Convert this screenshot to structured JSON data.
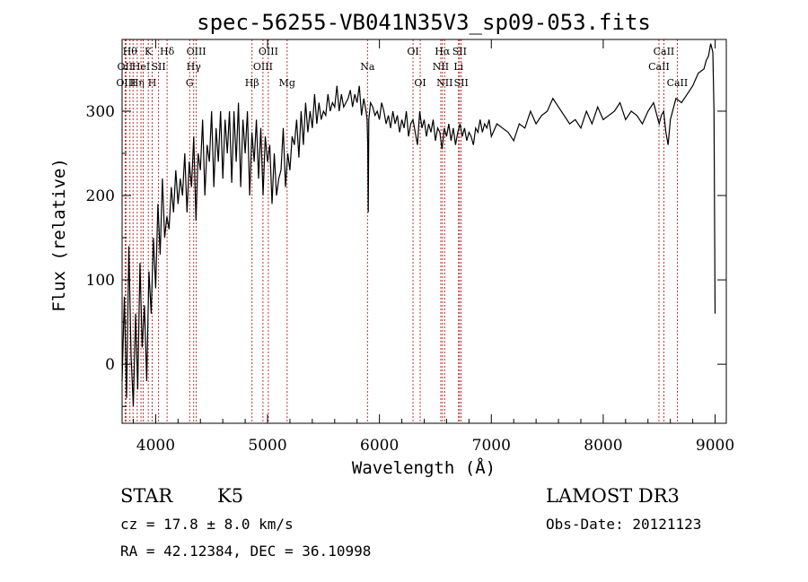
{
  "chart_data": {
    "type": "line",
    "title": "spec-56255-VB041N35V3_sp09-053.fits",
    "xlabel": "Wavelength (Å)",
    "ylabel": "Flux (relative)",
    "xlim": [
      3700,
      9100
    ],
    "ylim": [
      -70,
      385
    ],
    "x_ticks": [
      4000,
      5000,
      6000,
      7000,
      8000,
      9000
    ],
    "x_tick_labels": [
      "4000",
      "5000",
      "6000",
      "7000",
      "8000",
      "9000"
    ],
    "y_ticks": [
      0,
      100,
      200,
      300
    ],
    "y_tick_labels": [
      "0",
      "100",
      "200",
      "300"
    ],
    "grid": false,
    "series": [
      {
        "name": "flux",
        "x": [
          3700,
          3720,
          3740,
          3760,
          3780,
          3800,
          3820,
          3840,
          3860,
          3880,
          3900,
          3920,
          3940,
          3960,
          3980,
          4000,
          4020,
          4040,
          4060,
          4080,
          4100,
          4120,
          4140,
          4160,
          4180,
          4200,
          4220,
          4240,
          4260,
          4280,
          4300,
          4320,
          4340,
          4360,
          4380,
          4400,
          4420,
          4440,
          4460,
          4480,
          4500,
          4520,
          4540,
          4560,
          4580,
          4600,
          4620,
          4640,
          4660,
          4680,
          4700,
          4720,
          4740,
          4760,
          4780,
          4800,
          4820,
          4840,
          4860,
          4880,
          4900,
          4920,
          4940,
          4960,
          4980,
          5000,
          5020,
          5040,
          5060,
          5080,
          5100,
          5120,
          5140,
          5160,
          5180,
          5200,
          5220,
          5240,
          5260,
          5280,
          5300,
          5320,
          5340,
          5360,
          5380,
          5400,
          5420,
          5440,
          5460,
          5480,
          5500,
          5520,
          5540,
          5560,
          5580,
          5600,
          5620,
          5640,
          5660,
          5680,
          5700,
          5720,
          5740,
          5760,
          5780,
          5800,
          5820,
          5840,
          5860,
          5880,
          5890,
          5895,
          5900,
          5905,
          5920,
          5940,
          5960,
          5980,
          6000,
          6020,
          6040,
          6060,
          6080,
          6100,
          6120,
          6140,
          6160,
          6180,
          6200,
          6220,
          6240,
          6260,
          6280,
          6300,
          6320,
          6340,
          6360,
          6380,
          6400,
          6420,
          6440,
          6460,
          6480,
          6500,
          6520,
          6540,
          6560,
          6580,
          6600,
          6620,
          6640,
          6660,
          6680,
          6700,
          6720,
          6740,
          6760,
          6780,
          6800,
          6820,
          6840,
          6860,
          6880,
          6900,
          6920,
          6940,
          6960,
          6980,
          7000,
          7050,
          7100,
          7150,
          7200,
          7250,
          7300,
          7350,
          7400,
          7450,
          7500,
          7550,
          7600,
          7650,
          7700,
          7750,
          7800,
          7850,
          7900,
          7950,
          8000,
          8050,
          8100,
          8150,
          8200,
          8250,
          8300,
          8350,
          8400,
          8450,
          8500,
          8520,
          8540,
          8560,
          8580,
          8600,
          8650,
          8700,
          8750,
          8800,
          8850,
          8900,
          8920,
          8940,
          8960,
          8980,
          8990,
          9000
        ],
        "y": [
          -20,
          80,
          -40,
          140,
          10,
          -50,
          60,
          -30,
          120,
          20,
          70,
          -20,
          110,
          60,
          150,
          90,
          190,
          130,
          220,
          150,
          175,
          160,
          210,
          180,
          230,
          190,
          220,
          200,
          250,
          180,
          240,
          210,
          270,
          170,
          250,
          230,
          290,
          200,
          260,
          240,
          300,
          210,
          280,
          240,
          300,
          220,
          290,
          250,
          300,
          215,
          300,
          240,
          310,
          210,
          290,
          250,
          300,
          200,
          275,
          240,
          290,
          220,
          280,
          200,
          270,
          240,
          260,
          190,
          250,
          200,
          220,
          230,
          280,
          210,
          250,
          230,
          270,
          260,
          290,
          245,
          300,
          260,
          310,
          275,
          300,
          280,
          320,
          285,
          310,
          290,
          300,
          295,
          320,
          300,
          310,
          305,
          330,
          300,
          320,
          305,
          310,
          315,
          325,
          305,
          320,
          310,
          330,
          295,
          315,
          300,
          290,
          260,
          180,
          290,
          310,
          305,
          295,
          300,
          290,
          310,
          300,
          285,
          295,
          280,
          300,
          285,
          295,
          275,
          290,
          280,
          300,
          270,
          285,
          290,
          275,
          260,
          300,
          280,
          290,
          270,
          285,
          275,
          290,
          265,
          280,
          275,
          255,
          280,
          270,
          285,
          265,
          280,
          260,
          275,
          285,
          270,
          280,
          265,
          275,
          270,
          260,
          280,
          275,
          290,
          275,
          285,
          280,
          290,
          270,
          285,
          280,
          275,
          265,
          285,
          280,
          300,
          285,
          295,
          300,
          315,
          305,
          295,
          285,
          290,
          280,
          300,
          285,
          305,
          290,
          295,
          300,
          310,
          290,
          300,
          295,
          285,
          300,
          310,
          285,
          295,
          300,
          275,
          260,
          290,
          315,
          310,
          320,
          330,
          345,
          350,
          360,
          365,
          380,
          370,
          300,
          60
        ]
      }
    ],
    "lines": [
      {
        "x": 3727,
        "label": "OII",
        "row": 2
      },
      {
        "x": 3735,
        "label": "OIII",
        "row": 3
      },
      {
        "x": 3770,
        "label": "Hθ",
        "row": 1
      },
      {
        "x": 3798,
        "label": "",
        "row": 0
      },
      {
        "x": 3835,
        "label": "Hη",
        "row": 3
      },
      {
        "x": 3869,
        "label": "HeI",
        "row": 2
      },
      {
        "x": 3889,
        "label": "",
        "row": 0
      },
      {
        "x": 3934,
        "label": "K",
        "row": 1
      },
      {
        "x": 3969,
        "label": "H",
        "row": 3
      },
      {
        "x": 4026,
        "label": "SII",
        "row": 2
      },
      {
        "x": 4102,
        "label": "Hδ",
        "row": 1
      },
      {
        "x": 4304,
        "label": "G",
        "row": 3
      },
      {
        "x": 4340,
        "label": "Hγ",
        "row": 2
      },
      {
        "x": 4363,
        "label": "OIII",
        "row": 1
      },
      {
        "x": 4861,
        "label": "Hβ",
        "row": 3
      },
      {
        "x": 4959,
        "label": "OIII",
        "row": 2
      },
      {
        "x": 5007,
        "label": "OIII",
        "row": 1
      },
      {
        "x": 5175,
        "label": "Mg",
        "row": 3
      },
      {
        "x": 5893,
        "label": "Na",
        "row": 2
      },
      {
        "x": 6300,
        "label": "OI",
        "row": 1
      },
      {
        "x": 6364,
        "label": "OI",
        "row": 3
      },
      {
        "x": 6548,
        "label": "NII",
        "row": 2
      },
      {
        "x": 6563,
        "label": "Hα",
        "row": 1
      },
      {
        "x": 6583,
        "label": "NII",
        "row": 3
      },
      {
        "x": 6707,
        "label": "Li",
        "row": 2
      },
      {
        "x": 6716,
        "label": "SII",
        "row": 1
      },
      {
        "x": 6731,
        "label": "SII",
        "row": 3
      },
      {
        "x": 8498,
        "label": "CaII",
        "row": 2
      },
      {
        "x": 8542,
        "label": "CaII",
        "row": 1
      },
      {
        "x": 8662,
        "label": "CaII",
        "row": 3
      }
    ]
  },
  "info": {
    "object_class": "STAR",
    "subclass": "K5",
    "survey": "LAMOST DR3",
    "cz": "cz = 17.8 ± 8.0 km/s",
    "obs_date": "Obs-Date: 20121123",
    "coords": "RA =  42.12384, DEC =  36.10998"
  },
  "colors": {
    "line_marker": "#b22222",
    "spectrum": "#000000"
  }
}
